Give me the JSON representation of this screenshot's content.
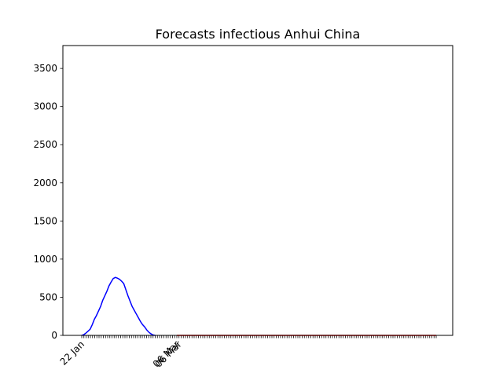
{
  "chart_data": {
    "type": "line",
    "title": "Forecasts infectious Anhui China",
    "xlabel": "",
    "ylabel": "",
    "ylim": [
      0,
      3800
    ],
    "yticks": [
      0,
      500,
      1000,
      1500,
      2000,
      2500,
      3000,
      3500
    ],
    "x_tick_labels": [
      "22 Jan",
      "06 Mar",
      "06 Mar"
    ],
    "grid": false,
    "series": [
      {
        "color": "#0000ff",
        "x_start": "22 Jan",
        "values": [
          0,
          10,
          30,
          55,
          80,
          140,
          210,
          260,
          320,
          380,
          460,
          520,
          580,
          650,
          700,
          745,
          760,
          750,
          735,
          710,
          680,
          600,
          520,
          450,
          380,
          330,
          280,
          230,
          180,
          140,
          110,
          70,
          40,
          20,
          5,
          0
        ]
      },
      {
        "color": "#ff0000",
        "x_start": "06 Mar",
        "values": [
          0,
          0
        ]
      }
    ]
  }
}
